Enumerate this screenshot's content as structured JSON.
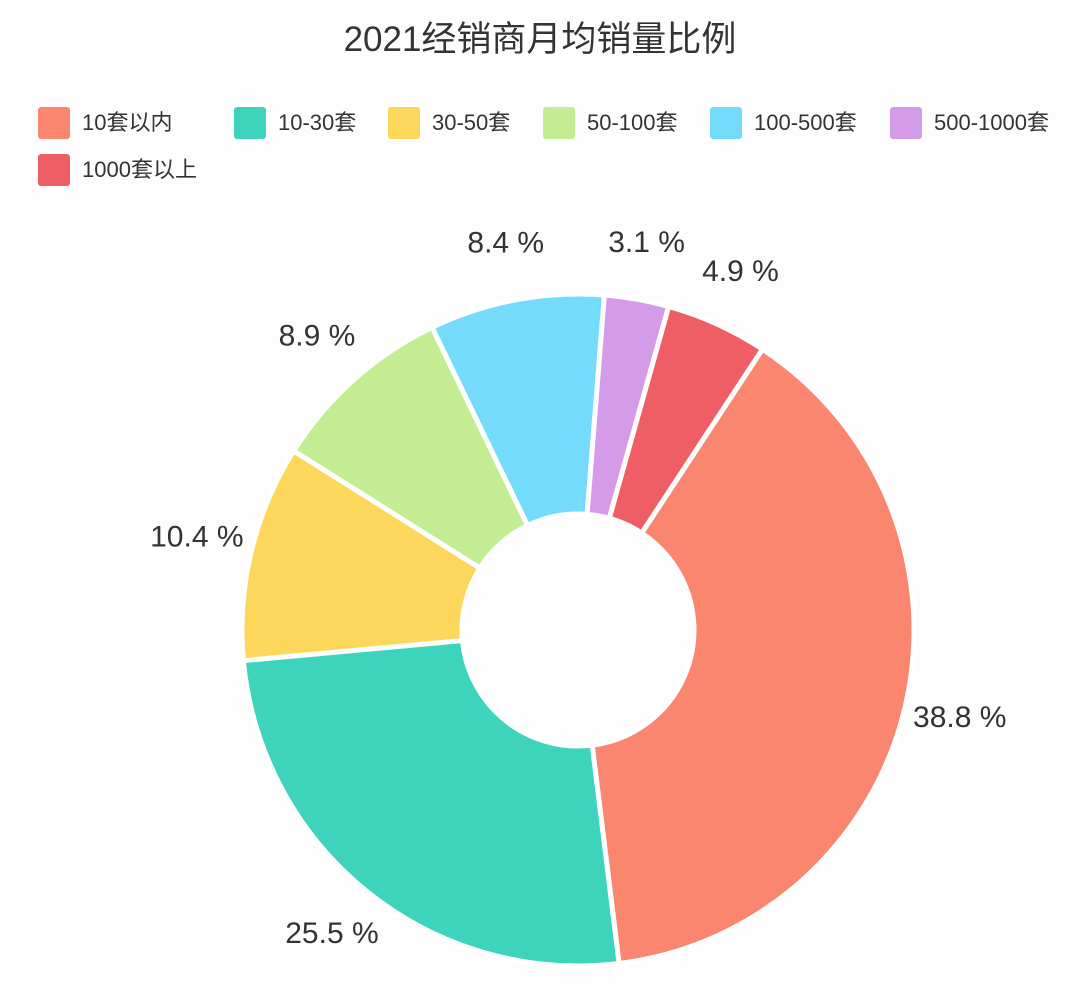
{
  "chart_data": {
    "type": "pie",
    "title": "2021经销商月均销量比例",
    "slices": [
      {
        "label": "10套以内",
        "value": 38.8,
        "value_label": "38.8 %",
        "color": "#fa8670"
      },
      {
        "label": "10-30套",
        "value": 25.5,
        "value_label": "25.5 %",
        "color": "#3dd3bc"
      },
      {
        "label": "30-50套",
        "value": 10.4,
        "value_label": "10.4 %",
        "color": "#fdd75c"
      },
      {
        "label": "50-100套",
        "value": 8.9,
        "value_label": "8.9 %",
        "color": "#c3ed93"
      },
      {
        "label": "100-500套",
        "value": 8.4,
        "value_label": "8.4 %",
        "color": "#74dbfa"
      },
      {
        "label": "500-1000套",
        "value": 3.1,
        "value_label": "3.1 %",
        "color": "#d49be8"
      },
      {
        "label": "1000套以上",
        "value": 4.9,
        "value_label": "4.9 %",
        "color": "#f05e65"
      }
    ],
    "donut": true,
    "legend_position": "top"
  }
}
